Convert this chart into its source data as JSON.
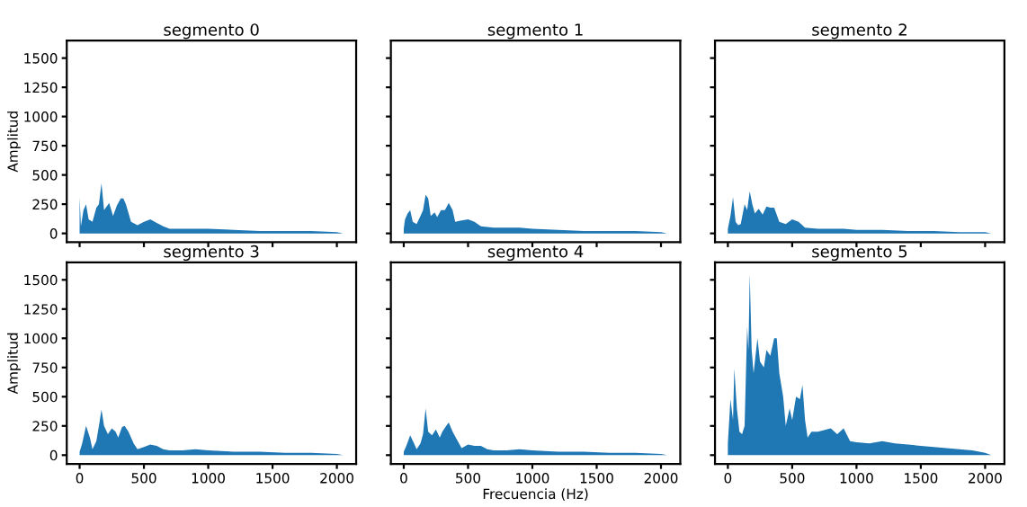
{
  "chart_data": [
    {
      "type": "area",
      "title": "segmento 0",
      "ylabel": "Amplitud",
      "tick_labels": "y",
      "xlim": [
        -100,
        2150
      ],
      "ylim": [
        -75,
        1650
      ],
      "xticks": [
        0,
        500,
        1000,
        1500,
        2000
      ],
      "yticks": [
        0,
        250,
        500,
        750,
        1000,
        1250,
        1500
      ],
      "series": [
        {
          "color": "#1f77b4",
          "x": [
            0,
            10,
            30,
            50,
            70,
            100,
            130,
            150,
            170,
            190,
            210,
            230,
            260,
            290,
            320,
            340,
            360,
            400,
            450,
            500,
            550,
            600,
            650,
            700,
            800,
            900,
            1000,
            1200,
            1400,
            1600,
            1800,
            2000,
            2048
          ],
          "values": [
            310,
            60,
            200,
            250,
            120,
            100,
            220,
            250,
            430,
            200,
            230,
            260,
            150,
            240,
            300,
            300,
            250,
            100,
            70,
            100,
            120,
            90,
            60,
            40,
            40,
            40,
            40,
            30,
            20,
            20,
            20,
            10,
            0
          ]
        }
      ]
    },
    {
      "type": "area",
      "title": "segmento 1",
      "tick_labels": false,
      "xlim": [
        -100,
        2150
      ],
      "ylim": [
        -75,
        1650
      ],
      "xticks": [
        0,
        500,
        1000,
        1500,
        2000
      ],
      "yticks": [
        0,
        250,
        500,
        750,
        1000,
        1250,
        1500
      ],
      "series": [
        {
          "color": "#1f77b4",
          "x": [
            0,
            10,
            30,
            50,
            70,
            100,
            130,
            150,
            170,
            190,
            210,
            240,
            260,
            290,
            320,
            350,
            380,
            400,
            450,
            500,
            550,
            600,
            700,
            800,
            900,
            1000,
            1200,
            1400,
            1600,
            1800,
            2000,
            2048
          ],
          "values": [
            40,
            120,
            170,
            200,
            100,
            80,
            150,
            200,
            330,
            300,
            150,
            180,
            140,
            200,
            200,
            260,
            200,
            100,
            110,
            120,
            100,
            60,
            50,
            50,
            50,
            40,
            30,
            20,
            20,
            20,
            10,
            0
          ]
        }
      ]
    },
    {
      "type": "area",
      "title": "segmento 2",
      "tick_labels": false,
      "xlim": [
        -100,
        2150
      ],
      "ylim": [
        -75,
        1650
      ],
      "xticks": [
        0,
        500,
        1000,
        1500,
        2000
      ],
      "yticks": [
        0,
        250,
        500,
        750,
        1000,
        1250,
        1500
      ],
      "series": [
        {
          "color": "#1f77b4",
          "x": [
            0,
            20,
            40,
            60,
            80,
            100,
            130,
            150,
            170,
            190,
            210,
            240,
            270,
            300,
            330,
            360,
            400,
            450,
            500,
            550,
            600,
            700,
            800,
            900,
            1000,
            1200,
            1400,
            1600,
            1800,
            2000,
            2048
          ],
          "values": [
            40,
            150,
            310,
            100,
            70,
            80,
            250,
            200,
            360,
            250,
            170,
            210,
            160,
            230,
            220,
            220,
            100,
            80,
            120,
            100,
            50,
            40,
            40,
            40,
            30,
            30,
            20,
            20,
            10,
            10,
            0
          ]
        }
      ]
    },
    {
      "type": "area",
      "title": "segmento 3",
      "ylabel": "Amplitud",
      "xlim": [
        -100,
        2150
      ],
      "ylim": [
        -75,
        1650
      ],
      "xticks": [
        0,
        500,
        1000,
        1500,
        2000
      ],
      "yticks": [
        0,
        250,
        500,
        750,
        1000,
        1250,
        1500
      ],
      "series": [
        {
          "color": "#1f77b4",
          "x": [
            0,
            20,
            50,
            80,
            100,
            130,
            150,
            170,
            190,
            220,
            250,
            280,
            300,
            330,
            350,
            380,
            420,
            450,
            500,
            550,
            600,
            650,
            700,
            800,
            900,
            1000,
            1200,
            1400,
            1600,
            1800,
            2000,
            2048
          ],
          "values": [
            30,
            100,
            250,
            150,
            50,
            120,
            250,
            390,
            250,
            180,
            230,
            200,
            150,
            240,
            250,
            200,
            100,
            50,
            70,
            90,
            80,
            50,
            40,
            40,
            50,
            40,
            30,
            30,
            20,
            20,
            10,
            0
          ]
        }
      ]
    },
    {
      "type": "area",
      "title": "segmento 4",
      "xlabel": "Frecuencia (Hz)",
      "tick_labels": "x",
      "xlim": [
        -100,
        2150
      ],
      "ylim": [
        -75,
        1650
      ],
      "xticks": [
        0,
        500,
        1000,
        1500,
        2000
      ],
      "yticks": [
        0,
        250,
        500,
        750,
        1000,
        1250,
        1500
      ],
      "series": [
        {
          "color": "#1f77b4",
          "x": [
            0,
            20,
            50,
            80,
            100,
            130,
            150,
            170,
            190,
            220,
            250,
            280,
            300,
            330,
            350,
            380,
            420,
            450,
            500,
            550,
            600,
            650,
            700,
            800,
            900,
            1000,
            1200,
            1400,
            1600,
            1800,
            2000,
            2048
          ],
          "values": [
            30,
            80,
            170,
            100,
            50,
            100,
            180,
            400,
            200,
            170,
            220,
            150,
            200,
            250,
            280,
            200,
            120,
            60,
            90,
            80,
            80,
            50,
            40,
            40,
            50,
            40,
            30,
            30,
            20,
            20,
            10,
            0
          ]
        }
      ]
    },
    {
      "type": "area",
      "title": "segmento 5",
      "tick_labels": "x",
      "xlim": [
        -100,
        2150
      ],
      "ylim": [
        -75,
        1650
      ],
      "xticks": [
        0,
        500,
        1000,
        1500,
        2000
      ],
      "yticks": [
        0,
        250,
        500,
        750,
        1000,
        1250,
        1500
      ],
      "series": [
        {
          "color": "#1f77b4",
          "x": [
            0,
            20,
            40,
            50,
            70,
            90,
            110,
            130,
            150,
            160,
            170,
            185,
            200,
            230,
            250,
            280,
            300,
            330,
            360,
            380,
            400,
            430,
            450,
            480,
            500,
            530,
            560,
            580,
            600,
            620,
            650,
            700,
            800,
            850,
            900,
            950,
            1000,
            1100,
            1200,
            1300,
            1400,
            1500,
            1600,
            1700,
            1800,
            1900,
            2000,
            2048
          ],
          "values": [
            100,
            480,
            300,
            740,
            400,
            200,
            180,
            250,
            1100,
            900,
            1550,
            900,
            700,
            1000,
            800,
            750,
            900,
            850,
            1000,
            1000,
            700,
            500,
            250,
            400,
            300,
            500,
            480,
            600,
            300,
            150,
            200,
            200,
            230,
            180,
            230,
            120,
            110,
            100,
            120,
            100,
            90,
            80,
            70,
            60,
            50,
            40,
            20,
            0
          ]
        }
      ]
    }
  ]
}
